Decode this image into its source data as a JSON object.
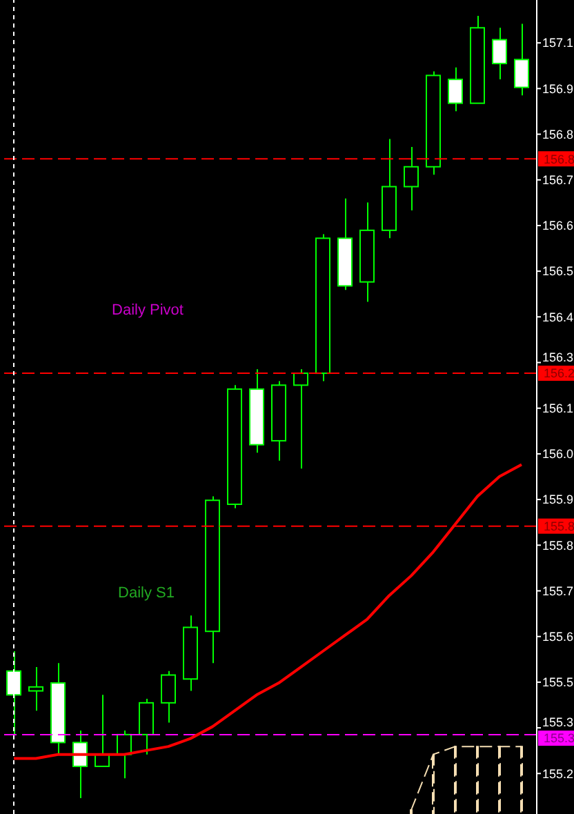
{
  "chart_data": {
    "type": "candlestick",
    "color": "#00ff00",
    "categories": [
      null,
      null,
      null,
      null,
      null,
      null,
      null,
      null,
      null,
      null,
      null,
      null,
      null,
      null,
      null,
      null,
      null,
      null,
      null,
      null,
      null,
      null,
      null,
      null
    ],
    "ohlc": [
      [
        155.48,
        155.53,
        155.32,
        155.42
      ],
      [
        155.43,
        155.49,
        155.38,
        155.44
      ],
      [
        155.45,
        155.5,
        155.27,
        155.3
      ],
      [
        155.3,
        155.33,
        155.16,
        155.24
      ],
      [
        155.24,
        155.42,
        155.24,
        155.27
      ],
      [
        155.27,
        155.33,
        155.21,
        155.32
      ],
      [
        155.32,
        155.41,
        155.27,
        155.4
      ],
      [
        155.4,
        155.48,
        155.35,
        155.47
      ],
      [
        155.46,
        155.62,
        155.43,
        155.59
      ],
      [
        155.58,
        155.92,
        155.5,
        155.91
      ],
      [
        155.9,
        156.2,
        155.89,
        156.19
      ],
      [
        156.19,
        156.24,
        156.03,
        156.05
      ],
      [
        156.06,
        156.21,
        156.01,
        156.2
      ],
      [
        156.2,
        156.24,
        155.99,
        156.23
      ],
      [
        156.23,
        156.58,
        156.21,
        156.57
      ],
      [
        156.57,
        156.67,
        156.44,
        156.45
      ],
      [
        156.46,
        156.66,
        156.41,
        156.59
      ],
      [
        156.59,
        156.82,
        156.57,
        156.7
      ],
      [
        156.7,
        156.8,
        156.64,
        156.75
      ],
      [
        156.75,
        156.99,
        156.73,
        156.98
      ],
      [
        156.97,
        157.0,
        156.89,
        156.91
      ],
      [
        156.91,
        157.13,
        156.91,
        157.1
      ],
      [
        157.07,
        157.1,
        156.97,
        157.01
      ],
      [
        157.02,
        157.11,
        156.93,
        156.95
      ]
    ],
    "series": [
      {
        "type": "line",
        "color": "#ff0000",
        "values": [
          155.26,
          155.26,
          155.27,
          155.27,
          155.27,
          155.27,
          155.28,
          155.29,
          155.31,
          155.34,
          155.38,
          155.42,
          155.45,
          155.49,
          155.53,
          155.57,
          155.61,
          155.67,
          155.72,
          155.78,
          155.85,
          155.92,
          155.97,
          156.0
        ]
      },
      {
        "type": "bar",
        "color": "#f5deb3",
        "line_style": "dashed",
        "values": [
          null,
          null,
          null,
          null,
          null,
          null,
          null,
          null,
          null,
          null,
          null,
          null,
          null,
          null,
          null,
          null,
          null,
          null,
          155.13,
          155.27,
          155.29,
          155.29,
          155.29,
          155.29
        ]
      }
    ],
    "ylim": [
      155.12,
      157.17
    ],
    "yticks": [
      {
        "value": 157.062,
        "label": "157.1"
      },
      {
        "value": 156.947,
        "label": "156.9"
      },
      {
        "value": 156.832,
        "label": "156.8"
      },
      {
        "value": 156.717,
        "label": "156.7"
      },
      {
        "value": 156.602,
        "label": "156.6"
      },
      {
        "value": 156.487,
        "label": "156.5"
      },
      {
        "value": 156.372,
        "label": "156.4"
      },
      {
        "value": 156.257,
        "label": "156.3"
      },
      {
        "value": 156.142,
        "label": "156.1"
      },
      {
        "value": 156.027,
        "label": "156.0"
      },
      {
        "value": 155.912,
        "label": "155.9"
      },
      {
        "value": 155.797,
        "label": "155.8"
      },
      {
        "value": 155.682,
        "label": "155.7"
      },
      {
        "value": 155.567,
        "label": "155.6"
      },
      {
        "value": 155.452,
        "label": "155.5"
      },
      {
        "value": 155.337,
        "label": "155.3"
      },
      {
        "value": 155.222,
        "label": "155.2"
      }
    ],
    "tick_labels": "y",
    "ref_lines": [
      {
        "axis": "y",
        "value": 156.77,
        "label": "156.8",
        "color": "#ff0000",
        "line_style": "dashed"
      },
      {
        "axis": "y",
        "value": 156.23,
        "label": "156.2",
        "color": "#ff0000",
        "line_style": "dashed"
      },
      {
        "axis": "y",
        "value": 155.845,
        "label": "155.8",
        "color": "#ff0000",
        "line_style": "dashed"
      },
      {
        "axis": "y",
        "value": 155.32,
        "label": "155.3",
        "color": "#ff00ff",
        "line_style": "dashed"
      }
    ],
    "annotations": [
      "Daily Pivot",
      "Daily S1"
    ]
  }
}
